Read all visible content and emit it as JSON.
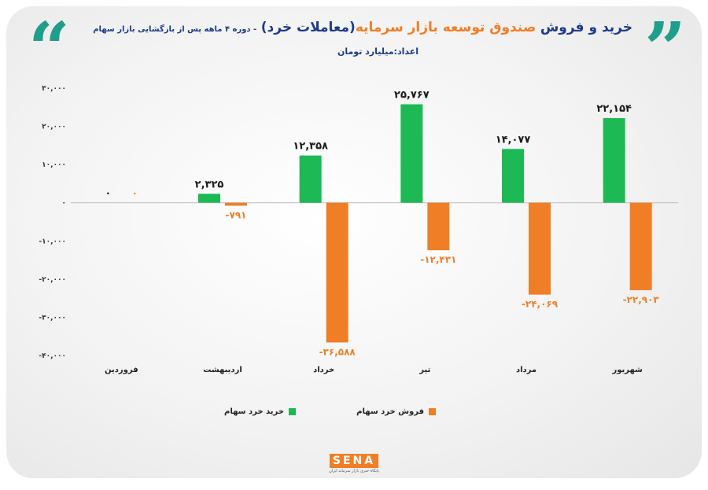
{
  "title": {
    "part1": "خرید و فروش",
    "part2": "صندوق توسعه بازار سرمایه",
    "part3": "(معاملات خرد)",
    "part4": "- دوره ۴ ماهه پس از بازگشایی بازار سهام",
    "unit": "اعداد:میلیارد تومان"
  },
  "colors": {
    "buy": "#1db954",
    "sell": "#f07e26",
    "accent": "#1f9e8b",
    "title": "#1d3a8a"
  },
  "chart_data": {
    "type": "bar",
    "categories": [
      "فروردین",
      "اردیبهشت",
      "خرداد",
      "تیر",
      "مرداد",
      "شهریور"
    ],
    "series": [
      {
        "name": "خرید خرد سهام",
        "values": [
          0,
          2325,
          12358,
          25767,
          14077,
          22154
        ],
        "labels": [
          "۰",
          "۲,۳۲۵",
          "۱۲,۳۵۸",
          "۲۵,۷۶۷",
          "۱۴,۰۷۷",
          "۲۲,۱۵۴"
        ]
      },
      {
        "name": "فروش خرد سهام",
        "values": [
          0,
          -791,
          -36588,
          -12431,
          -24069,
          -22903
        ],
        "labels": [
          "۰",
          "-۷۹۱",
          "-۳۶,۵۸۸",
          "-۱۲,۴۳۱",
          "-۲۴,۰۶۹",
          "-۲۲,۹۰۳"
        ]
      }
    ],
    "ylim": [
      -40000,
      30000
    ],
    "yticks": [
      30000,
      20000,
      10000,
      0,
      -10000,
      -20000,
      -30000,
      -40000
    ],
    "ytick_labels": [
      "۳۰,۰۰۰",
      "۲۰,۰۰۰",
      "۱۰,۰۰۰",
      "۰",
      "-۱۰,۰۰۰",
      "-۲۰,۰۰۰",
      "-۳۰,۰۰۰",
      "-۴۰,۰۰۰"
    ],
    "grid": false,
    "legend_position": "bottom"
  },
  "logo": {
    "text": "SENA",
    "sub": "پایگاه خبری بازار سرمایه ایران"
  }
}
